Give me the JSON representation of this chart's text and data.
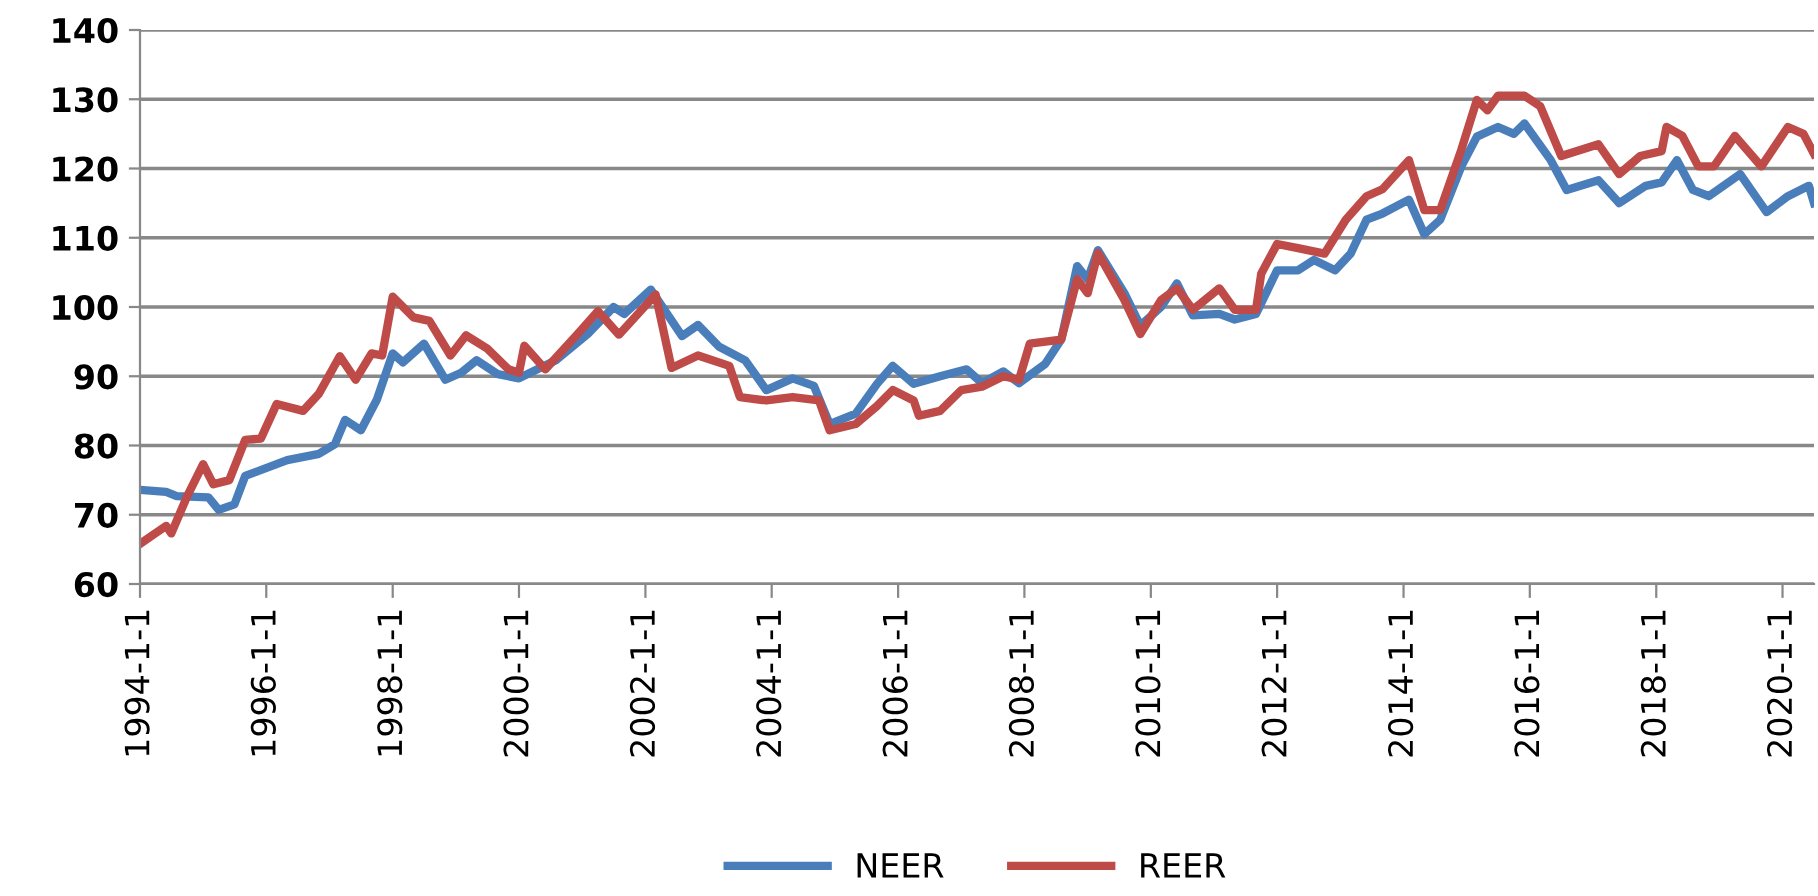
{
  "chart_data": {
    "type": "line",
    "xlim": [
      "1994-01-01",
      "2020-07-01"
    ],
    "xticks": [
      {
        "value": "1994-01-01",
        "label": "1994-1-1"
      },
      {
        "value": "1996-01-01",
        "label": "1996-1-1"
      },
      {
        "value": "1998-01-01",
        "label": "1998-1-1"
      },
      {
        "value": "2000-01-01",
        "label": "2000-1-1"
      },
      {
        "value": "2002-01-01",
        "label": "2002-1-1"
      },
      {
        "value": "2004-01-01",
        "label": "2004-1-1"
      },
      {
        "value": "2006-01-01",
        "label": "2006-1-1"
      },
      {
        "value": "2008-01-01",
        "label": "2008-1-1"
      },
      {
        "value": "2010-01-01",
        "label": "2010-1-1"
      },
      {
        "value": "2012-01-01",
        "label": "2012-1-1"
      },
      {
        "value": "2014-01-01",
        "label": "2014-1-1"
      },
      {
        "value": "2016-01-01",
        "label": "2016-1-1"
      },
      {
        "value": "2018-01-01",
        "label": "2018-1-1"
      },
      {
        "value": "2020-01-01",
        "label": "2020-1-1"
      }
    ],
    "ylim": [
      60,
      140
    ],
    "yticks": [
      60,
      70,
      80,
      90,
      100,
      110,
      120,
      130,
      140
    ],
    "grid": "y",
    "legend": "bottom",
    "marker": "none",
    "line_style": "solid",
    "series": [
      {
        "name": "NEER",
        "color": "#4a7ebb",
        "x": [
          "1994-01",
          "1994-06",
          "1994-08",
          "1995-02",
          "1995-04",
          "1995-07",
          "1995-09",
          "1996-05",
          "1996-11",
          "1997-02",
          "1997-04",
          "1997-07",
          "1997-10",
          "1998-01",
          "1998-03",
          "1998-07",
          "1998-11",
          "1999-02",
          "1999-05",
          "1999-09",
          "2000-01",
          "2000-08",
          "2001-02",
          "2001-07",
          "2001-09",
          "2002-02",
          "2002-08",
          "2002-11",
          "2003-03",
          "2003-08",
          "2003-12",
          "2004-05",
          "2004-09",
          "2004-12",
          "2005-05",
          "2005-09",
          "2005-12",
          "2006-04",
          "2006-09",
          "2007-02",
          "2007-05",
          "2007-09",
          "2007-12",
          "2008-05",
          "2008-08",
          "2008-11",
          "2009-01",
          "2009-03",
          "2009-08",
          "2009-11",
          "2010-03",
          "2010-06",
          "2010-09",
          "2011-02",
          "2011-05",
          "2011-09",
          "2012-01",
          "2012-05",
          "2012-08",
          "2012-12",
          "2013-03",
          "2013-06",
          "2013-09",
          "2014-02",
          "2014-05",
          "2014-08",
          "2014-12",
          "2015-03",
          "2015-07",
          "2015-10",
          "2015-12",
          "2016-05",
          "2016-08",
          "2017-02",
          "2017-06",
          "2017-11",
          "2018-02",
          "2018-05",
          "2018-08",
          "2018-11",
          "2019-05",
          "2019-10",
          "2020-02",
          "2020-06",
          "2020-07"
        ],
        "values": [
          73.6,
          73.3,
          72.7,
          72.5,
          70.7,
          71.5,
          75.6,
          77.9,
          78.8,
          80.2,
          83.7,
          82.2,
          86.6,
          93.3,
          92,
          94.7,
          89.5,
          90.5,
          92.3,
          90.3,
          89.7,
          92.3,
          96.1,
          100,
          99,
          102.5,
          95.8,
          97.4,
          94.3,
          92.3,
          88,
          89.7,
          88.6,
          83.1,
          84.6,
          88.9,
          91.5,
          88.9,
          90,
          91,
          89,
          90.7,
          89,
          91.8,
          95.3,
          105.9,
          104,
          108.2,
          102,
          97.3,
          100,
          103.4,
          98.8,
          99,
          98.2,
          99,
          105.3,
          105.3,
          106.8,
          105.3,
          107.7,
          112.6,
          113.5,
          115.5,
          110.5,
          112.6,
          120.3,
          124.6,
          126,
          125,
          126.5,
          121.2,
          116.9,
          118.3,
          115,
          117.5,
          118,
          121.2,
          116.9,
          116,
          119.2,
          113.7,
          116,
          117.5,
          115
        ]
      },
      {
        "name": "REER",
        "color": "#be4b48",
        "x": [
          "1994-01",
          "1994-06",
          "1994-07",
          "1994-10",
          "1995-01",
          "1995-03",
          "1995-06",
          "1995-09",
          "1995-12",
          "1996-03",
          "1996-08",
          "1996-11",
          "1997-03",
          "1997-06",
          "1997-09",
          "1997-11",
          "1998-01",
          "1998-05",
          "1998-08",
          "1998-12",
          "1999-03",
          "1999-07",
          "1999-11",
          "2000-01",
          "2000-02",
          "2000-06",
          "2000-12",
          "2001-04",
          "2001-08",
          "2002-03",
          "2002-06",
          "2002-11",
          "2003-05",
          "2003-07",
          "2003-12",
          "2004-05",
          "2004-10",
          "2004-12",
          "2005-05",
          "2005-09",
          "2005-12",
          "2006-04",
          "2006-05",
          "2006-09",
          "2007-01",
          "2007-05",
          "2007-09",
          "2007-12",
          "2008-02",
          "2008-08",
          "2008-11",
          "2009-01",
          "2009-03",
          "2009-08",
          "2009-11",
          "2010-03",
          "2010-06",
          "2010-09",
          "2011-02",
          "2011-05",
          "2011-09",
          "2011-10",
          "2012-01",
          "2012-05",
          "2012-10",
          "2013-02",
          "2013-06",
          "2013-09",
          "2014-02",
          "2014-05",
          "2014-08",
          "2014-12",
          "2015-03",
          "2015-05",
          "2015-07",
          "2015-12",
          "2016-03",
          "2016-07",
          "2017-02",
          "2017-06",
          "2017-10",
          "2018-02",
          "2018-03",
          "2018-06",
          "2018-09",
          "2018-12",
          "2019-04",
          "2019-09",
          "2020-02",
          "2020-05",
          "2020-07"
        ],
        "values": [
          65.8,
          68.4,
          67.3,
          72.7,
          77.3,
          74.4,
          75,
          80.8,
          81,
          86,
          85,
          87.5,
          92.9,
          89.5,
          93.3,
          93,
          101.5,
          98.5,
          98,
          93,
          95.9,
          94,
          91,
          90.5,
          94.4,
          91,
          96,
          99.4,
          96,
          101.8,
          91.2,
          93,
          91.5,
          87,
          86.5,
          87,
          86.5,
          82.2,
          83.1,
          85.7,
          88,
          86.5,
          84.3,
          85,
          88,
          88.5,
          90,
          89.5,
          94.7,
          95.3,
          104,
          102,
          107.8,
          101,
          96.1,
          101,
          102.7,
          99.6,
          102.7,
          99.6,
          99.6,
          104.8,
          109.1,
          108.5,
          107.7,
          112.6,
          116,
          117,
          121.2,
          114,
          114,
          122.7,
          129.9,
          128.4,
          130.5,
          130.5,
          129,
          121.8,
          123.5,
          119.2,
          121.8,
          122.5,
          126,
          124.7,
          120.3,
          120.3,
          124.7,
          120.3,
          126,
          125,
          122.1
        ]
      }
    ]
  }
}
